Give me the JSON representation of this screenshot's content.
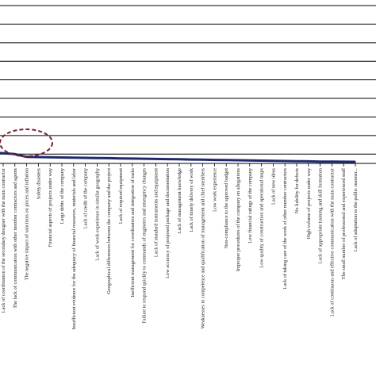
{
  "chart_data": {
    "type": "line",
    "title": "",
    "xlabel": "",
    "ylabel": "",
    "grid": "horizontal",
    "legend": "none",
    "line_color": "#1f2a6e",
    "highlight_ellipse_color": "#7a2230",
    "categories": [
      "Lack of coordination of the secondary designer with the main contractor",
      "The lack of communication with other member contractors and agents",
      "The negative impact of sanctions on prices and inflation",
      "Safety disasters",
      "Financial aspects of projects under way",
      "Large debts of the company",
      "Insufficient evidence for the adequacy of financial resources, materials and labor",
      "Lack of credit of the company",
      "Lack of work experience in similar geography",
      "Geographical differences between the company and the project",
      "Lack of required equipment",
      "Inefficient management for coordination and integration of tasks",
      "Failure to respond quickly to commands of engineers and emergency changes",
      "Lack of standard instruments and equipment",
      "Low accuracy of proposed package and documentation",
      "Lack of management knowledge",
      "Lack of timely delivery of work",
      "Weaknesses in competence and qualification of management and chief members",
      "Low work experience",
      "Non-compliance to the approved budget",
      "Improper procedures of the company on allegations",
      "Low financial ratings of the company",
      "Low quality of construction and operational maps",
      "Lack of new ideas",
      "Lack of taking care of the work of other member contractors",
      "No liability for defects",
      "High volume of projects under way",
      "Lack of appropriate training and skill formation",
      "Lack of continuous and effective communication with the main contractor",
      "The small number of professional and experienced staff",
      "Lack of adaptation to the public manner..."
    ],
    "values": [
      20.5,
      20.0,
      18.5,
      18.4,
      18.3,
      18.2,
      18.1,
      18.0,
      17.9,
      17.8,
      17.7,
      17.6,
      17.5,
      17.4,
      17.3,
      17.2,
      17.1,
      17.0,
      16.9,
      16.8,
      16.7,
      16.6,
      16.5,
      16.4,
      16.3,
      16.2,
      16.1,
      16.0,
      15.95,
      15.9,
      15.85
    ],
    "ylim": [
      0,
      100
    ],
    "yticks": [
      20,
      30,
      40,
      50,
      60,
      70,
      80,
      90,
      100
    ]
  }
}
